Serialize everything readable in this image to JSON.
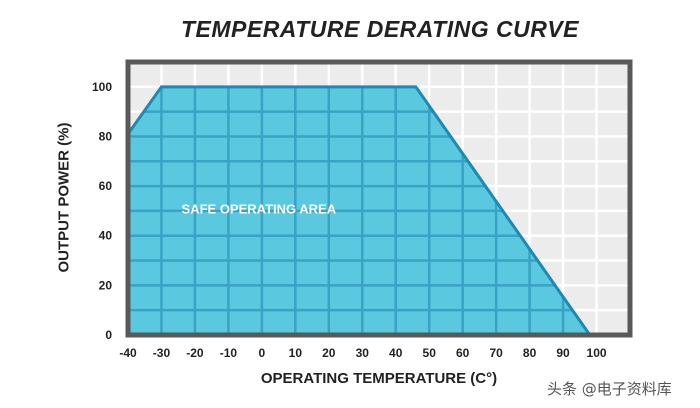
{
  "chart_data": {
    "type": "area",
    "title": "TEMPERATURE DERATING CURVE",
    "xlabel": "OPERATING TEMPERATURE (C°)",
    "ylabel": "OUTPUT POWER (%)",
    "xlim": [
      -40,
      110
    ],
    "ylim": [
      0,
      110
    ],
    "x_ticks": [
      -40,
      -30,
      -20,
      -10,
      0,
      10,
      20,
      30,
      40,
      50,
      60,
      70,
      80,
      90,
      100
    ],
    "y_ticks": [
      0,
      20,
      40,
      60,
      80,
      100
    ],
    "grid": true,
    "series": [
      {
        "x": [
          -40,
          -30,
          46,
          98
        ],
        "y": [
          81,
          100,
          100,
          0
        ]
      }
    ],
    "annotations": [
      {
        "text": "SAFE OPERATING AREA",
        "x": -24,
        "y": 49
      }
    ],
    "colors": {
      "fill": "#5ac8df",
      "line": "#1f89b4",
      "frame": "#58595b",
      "grid_bg": "#ececec",
      "grid_line": "#ffffff",
      "grid_line_inside": "#3aa2c4"
    }
  },
  "watermark": "头条 @电子资料库"
}
